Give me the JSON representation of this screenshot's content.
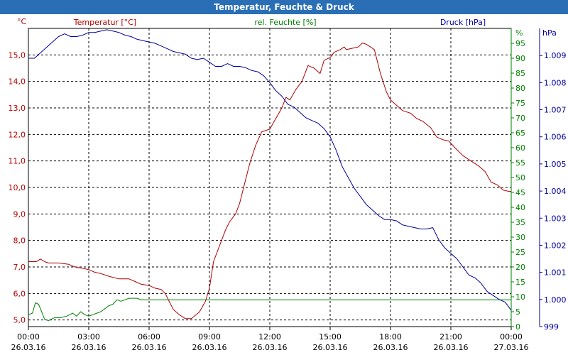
{
  "window": {
    "title": "Temperatur, Feuchte & Druck"
  },
  "chart_data": {
    "type": "line",
    "title": "Temperatur, Feuchte & Druck",
    "colors": {
      "temperature": "#b00000",
      "humidity": "#008000",
      "pressure": "#0000a0",
      "grid": "#000000"
    },
    "axes": {
      "temperature": {
        "label": "Temperatur [°C]",
        "unit": "°C",
        "range": [
          4.75,
          16.0
        ],
        "ticks": [
          "5,0",
          "6,0",
          "7,0",
          "8,0",
          "9,0",
          "10,0",
          "11,0",
          "12,0",
          "13,0",
          "14,0",
          "15,0"
        ]
      },
      "humidity": {
        "label": "rel. Feuchte [%]",
        "unit": "%",
        "range": [
          0,
          100
        ],
        "ticks": [
          "0",
          "5",
          "10",
          "15",
          "20",
          "25",
          "30",
          "35",
          "40",
          "45",
          "50",
          "55",
          "60",
          "65",
          "70",
          "75",
          "80",
          "85",
          "90",
          "95"
        ]
      },
      "pressure": {
        "label": "Druck [hPa]",
        "unit": "hPa",
        "range": [
          999.0,
          1010.0
        ],
        "ticks": [
          "999",
          "1.000",
          "1.001",
          "1.002",
          "1.003",
          "1.004",
          "1.005",
          "1.006",
          "1.007",
          "1.008",
          "1.009"
        ]
      }
    },
    "x_ticks": [
      {
        "time": "00:00",
        "date": "26.03.16"
      },
      {
        "time": "03:00",
        "date": "26.03.16"
      },
      {
        "time": "06:00",
        "date": "26.03.16"
      },
      {
        "time": "09:00",
        "date": "26.03.16"
      },
      {
        "time": "12:00",
        "date": "26.03.16"
      },
      {
        "time": "15:00",
        "date": "26.03.16"
      },
      {
        "time": "18:00",
        "date": "26.03.16"
      },
      {
        "time": "21:00",
        "date": "26.03.16"
      },
      {
        "time": "00:00",
        "date": "27.03.16"
      }
    ],
    "x_range_hours": [
      0,
      24
    ],
    "series": [
      {
        "name": "Temperatur",
        "axis": "temperature",
        "points": [
          [
            0,
            7.2
          ],
          [
            0.4,
            7.2
          ],
          [
            0.5,
            7.25
          ],
          [
            0.6,
            7.3
          ],
          [
            0.8,
            7.2
          ],
          [
            1.0,
            7.15
          ],
          [
            1.5,
            7.15
          ],
          [
            2.0,
            7.1
          ],
          [
            2.3,
            7.0
          ],
          [
            2.7,
            6.95
          ],
          [
            3.0,
            6.9
          ],
          [
            3.3,
            6.8
          ],
          [
            3.6,
            6.75
          ],
          [
            4.0,
            6.65
          ],
          [
            4.5,
            6.55
          ],
          [
            5.0,
            6.55
          ],
          [
            5.3,
            6.45
          ],
          [
            5.6,
            6.35
          ],
          [
            6.0,
            6.3
          ],
          [
            6.3,
            6.2
          ],
          [
            6.6,
            6.15
          ],
          [
            6.8,
            6.0
          ],
          [
            7.0,
            5.7
          ],
          [
            7.2,
            5.4
          ],
          [
            7.5,
            5.2
          ],
          [
            7.8,
            5.05
          ],
          [
            8.1,
            5.05
          ],
          [
            8.5,
            5.3
          ],
          [
            8.8,
            5.7
          ],
          [
            9.0,
            6.2
          ],
          [
            9.2,
            7.2
          ],
          [
            9.5,
            7.8
          ],
          [
            9.8,
            8.4
          ],
          [
            10.0,
            8.7
          ],
          [
            10.3,
            9.0
          ],
          [
            10.5,
            9.4
          ],
          [
            10.8,
            10.3
          ],
          [
            11.0,
            10.9
          ],
          [
            11.3,
            11.6
          ],
          [
            11.6,
            12.1
          ],
          [
            12.0,
            12.2
          ],
          [
            12.3,
            12.6
          ],
          [
            12.6,
            13.0
          ],
          [
            12.8,
            13.4
          ],
          [
            13.0,
            13.3
          ],
          [
            13.3,
            13.7
          ],
          [
            13.6,
            14.0
          ],
          [
            13.9,
            14.6
          ],
          [
            14.2,
            14.5
          ],
          [
            14.5,
            14.3
          ],
          [
            14.7,
            14.8
          ],
          [
            15.0,
            14.9
          ],
          [
            15.2,
            15.1
          ],
          [
            15.5,
            15.2
          ],
          [
            15.7,
            15.3
          ],
          [
            15.8,
            15.2
          ],
          [
            16.1,
            15.25
          ],
          [
            16.4,
            15.3
          ],
          [
            16.6,
            15.45
          ],
          [
            16.8,
            15.4
          ],
          [
            17.0,
            15.3
          ],
          [
            17.2,
            15.2
          ],
          [
            17.5,
            14.3
          ],
          [
            17.8,
            13.6
          ],
          [
            18.0,
            13.3
          ],
          [
            18.3,
            13.1
          ],
          [
            18.6,
            12.9
          ],
          [
            19.0,
            12.8
          ],
          [
            19.3,
            12.6
          ],
          [
            19.6,
            12.5
          ],
          [
            20.0,
            12.25
          ],
          [
            20.3,
            11.9
          ],
          [
            20.6,
            11.8
          ],
          [
            20.9,
            11.75
          ],
          [
            21.2,
            11.5
          ],
          [
            21.6,
            11.2
          ],
          [
            22.0,
            11.0
          ],
          [
            22.4,
            10.8
          ],
          [
            22.7,
            10.6
          ],
          [
            23.0,
            10.2
          ],
          [
            23.3,
            10.1
          ],
          [
            23.6,
            9.9
          ],
          [
            23.9,
            9.85
          ],
          [
            24.0,
            9.85
          ]
        ]
      },
      {
        "name": "rel. Feuchte",
        "axis": "humidity",
        "points": [
          [
            0,
            4
          ],
          [
            0.2,
            4.5
          ],
          [
            0.35,
            8
          ],
          [
            0.5,
            7.5
          ],
          [
            0.6,
            6
          ],
          [
            0.8,
            2.5
          ],
          [
            1.0,
            2
          ],
          [
            1.3,
            3
          ],
          [
            1.6,
            3
          ],
          [
            1.9,
            3.5
          ],
          [
            2.2,
            4.5
          ],
          [
            2.4,
            3.5
          ],
          [
            2.6,
            5
          ],
          [
            2.8,
            4
          ],
          [
            3.0,
            3.5
          ],
          [
            3.2,
            4
          ],
          [
            3.4,
            4.5
          ],
          [
            3.6,
            5
          ],
          [
            3.8,
            6
          ],
          [
            4.0,
            7
          ],
          [
            4.2,
            7.5
          ],
          [
            4.4,
            9
          ],
          [
            4.6,
            8.5
          ],
          [
            4.8,
            9
          ],
          [
            5.0,
            9.5
          ],
          [
            5.2,
            9.5
          ],
          [
            5.4,
            9.5
          ],
          [
            5.6,
            9
          ],
          [
            6.0,
            9
          ],
          [
            24.0,
            9
          ]
        ]
      },
      {
        "name": "Druck",
        "axis": "pressure",
        "points": [
          [
            0,
            1008.9
          ],
          [
            0.3,
            1008.9
          ],
          [
            0.6,
            1009.1
          ],
          [
            0.9,
            1009.3
          ],
          [
            1.2,
            1009.5
          ],
          [
            1.5,
            1009.7
          ],
          [
            1.8,
            1009.8
          ],
          [
            2.1,
            1009.7
          ],
          [
            2.4,
            1009.7
          ],
          [
            2.7,
            1009.75
          ],
          [
            3.0,
            1009.85
          ],
          [
            3.3,
            1009.85
          ],
          [
            3.6,
            1009.9
          ],
          [
            3.9,
            1009.95
          ],
          [
            4.2,
            1009.9
          ],
          [
            4.5,
            1009.85
          ],
          [
            4.8,
            1009.75
          ],
          [
            5.1,
            1009.7
          ],
          [
            5.4,
            1009.6
          ],
          [
            5.7,
            1009.55
          ],
          [
            6.0,
            1009.5
          ],
          [
            6.3,
            1009.45
          ],
          [
            6.6,
            1009.35
          ],
          [
            6.9,
            1009.25
          ],
          [
            7.2,
            1009.15
          ],
          [
            7.5,
            1009.1
          ],
          [
            7.8,
            1009.05
          ],
          [
            8.1,
            1008.9
          ],
          [
            8.4,
            1008.85
          ],
          [
            8.7,
            1008.9
          ],
          [
            9.0,
            1008.75
          ],
          [
            9.3,
            1008.6
          ],
          [
            9.6,
            1008.6
          ],
          [
            9.9,
            1008.7
          ],
          [
            10.2,
            1008.6
          ],
          [
            10.5,
            1008.6
          ],
          [
            10.8,
            1008.55
          ],
          [
            11.1,
            1008.45
          ],
          [
            11.4,
            1008.4
          ],
          [
            11.7,
            1008.25
          ],
          [
            12.0,
            1008.0
          ],
          [
            12.3,
            1007.7
          ],
          [
            12.6,
            1007.5
          ],
          [
            12.9,
            1007.2
          ],
          [
            13.2,
            1007.1
          ],
          [
            13.5,
            1006.9
          ],
          [
            13.8,
            1006.7
          ],
          [
            14.1,
            1006.6
          ],
          [
            14.4,
            1006.5
          ],
          [
            14.7,
            1006.3
          ],
          [
            15.0,
            1006.0
          ],
          [
            15.3,
            1005.5
          ],
          [
            15.6,
            1004.9
          ],
          [
            15.9,
            1004.5
          ],
          [
            16.2,
            1004.1
          ],
          [
            16.5,
            1003.8
          ],
          [
            16.8,
            1003.5
          ],
          [
            17.1,
            1003.3
          ],
          [
            17.4,
            1003.1
          ],
          [
            17.7,
            1002.95
          ],
          [
            18.0,
            1002.95
          ],
          [
            18.3,
            1002.9
          ],
          [
            18.6,
            1002.75
          ],
          [
            18.9,
            1002.7
          ],
          [
            19.2,
            1002.65
          ],
          [
            19.5,
            1002.6
          ],
          [
            19.8,
            1002.6
          ],
          [
            20.1,
            1002.65
          ],
          [
            20.4,
            1002.2
          ],
          [
            20.7,
            1001.9
          ],
          [
            21.0,
            1001.7
          ],
          [
            21.3,
            1001.5
          ],
          [
            21.6,
            1001.2
          ],
          [
            21.9,
            1000.9
          ],
          [
            22.2,
            1000.8
          ],
          [
            22.5,
            1000.6
          ],
          [
            22.8,
            1000.3
          ],
          [
            23.1,
            1000.15
          ],
          [
            23.4,
            1000.0
          ],
          [
            23.7,
            999.9
          ],
          [
            24.0,
            999.6
          ]
        ]
      }
    ]
  }
}
